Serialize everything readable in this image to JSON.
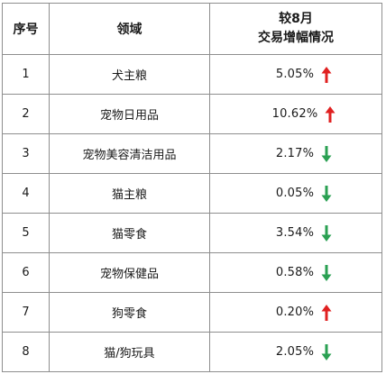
{
  "table": {
    "headers": {
      "index": "序号",
      "field": "领域",
      "change_line1": "较8月",
      "change_line2": "交易增幅情况"
    },
    "rows": [
      {
        "index": "1",
        "field": "犬主粮",
        "change": "5.05%",
        "direction": "up"
      },
      {
        "index": "2",
        "field": "宠物日用品",
        "change": "10.62%",
        "direction": "up"
      },
      {
        "index": "3",
        "field": "宠物美容清洁用品",
        "change": "2.17%",
        "direction": "down"
      },
      {
        "index": "4",
        "field": "猫主粮",
        "change": "0.05%",
        "direction": "down"
      },
      {
        "index": "5",
        "field": "猫零食",
        "change": "3.54%",
        "direction": "down"
      },
      {
        "index": "6",
        "field": "宠物保健品",
        "change": "0.58%",
        "direction": "down"
      },
      {
        "index": "7",
        "field": "狗零食",
        "change": "0.20%",
        "direction": "up"
      },
      {
        "index": "8",
        "field": "猫/狗玩具",
        "change": "2.05%",
        "direction": "down"
      }
    ]
  },
  "colors": {
    "up": "#e02020",
    "down": "#2aa052",
    "border": "#8e8e8e"
  },
  "icons": {
    "up": "arrow-up-icon",
    "down": "arrow-down-icon"
  }
}
